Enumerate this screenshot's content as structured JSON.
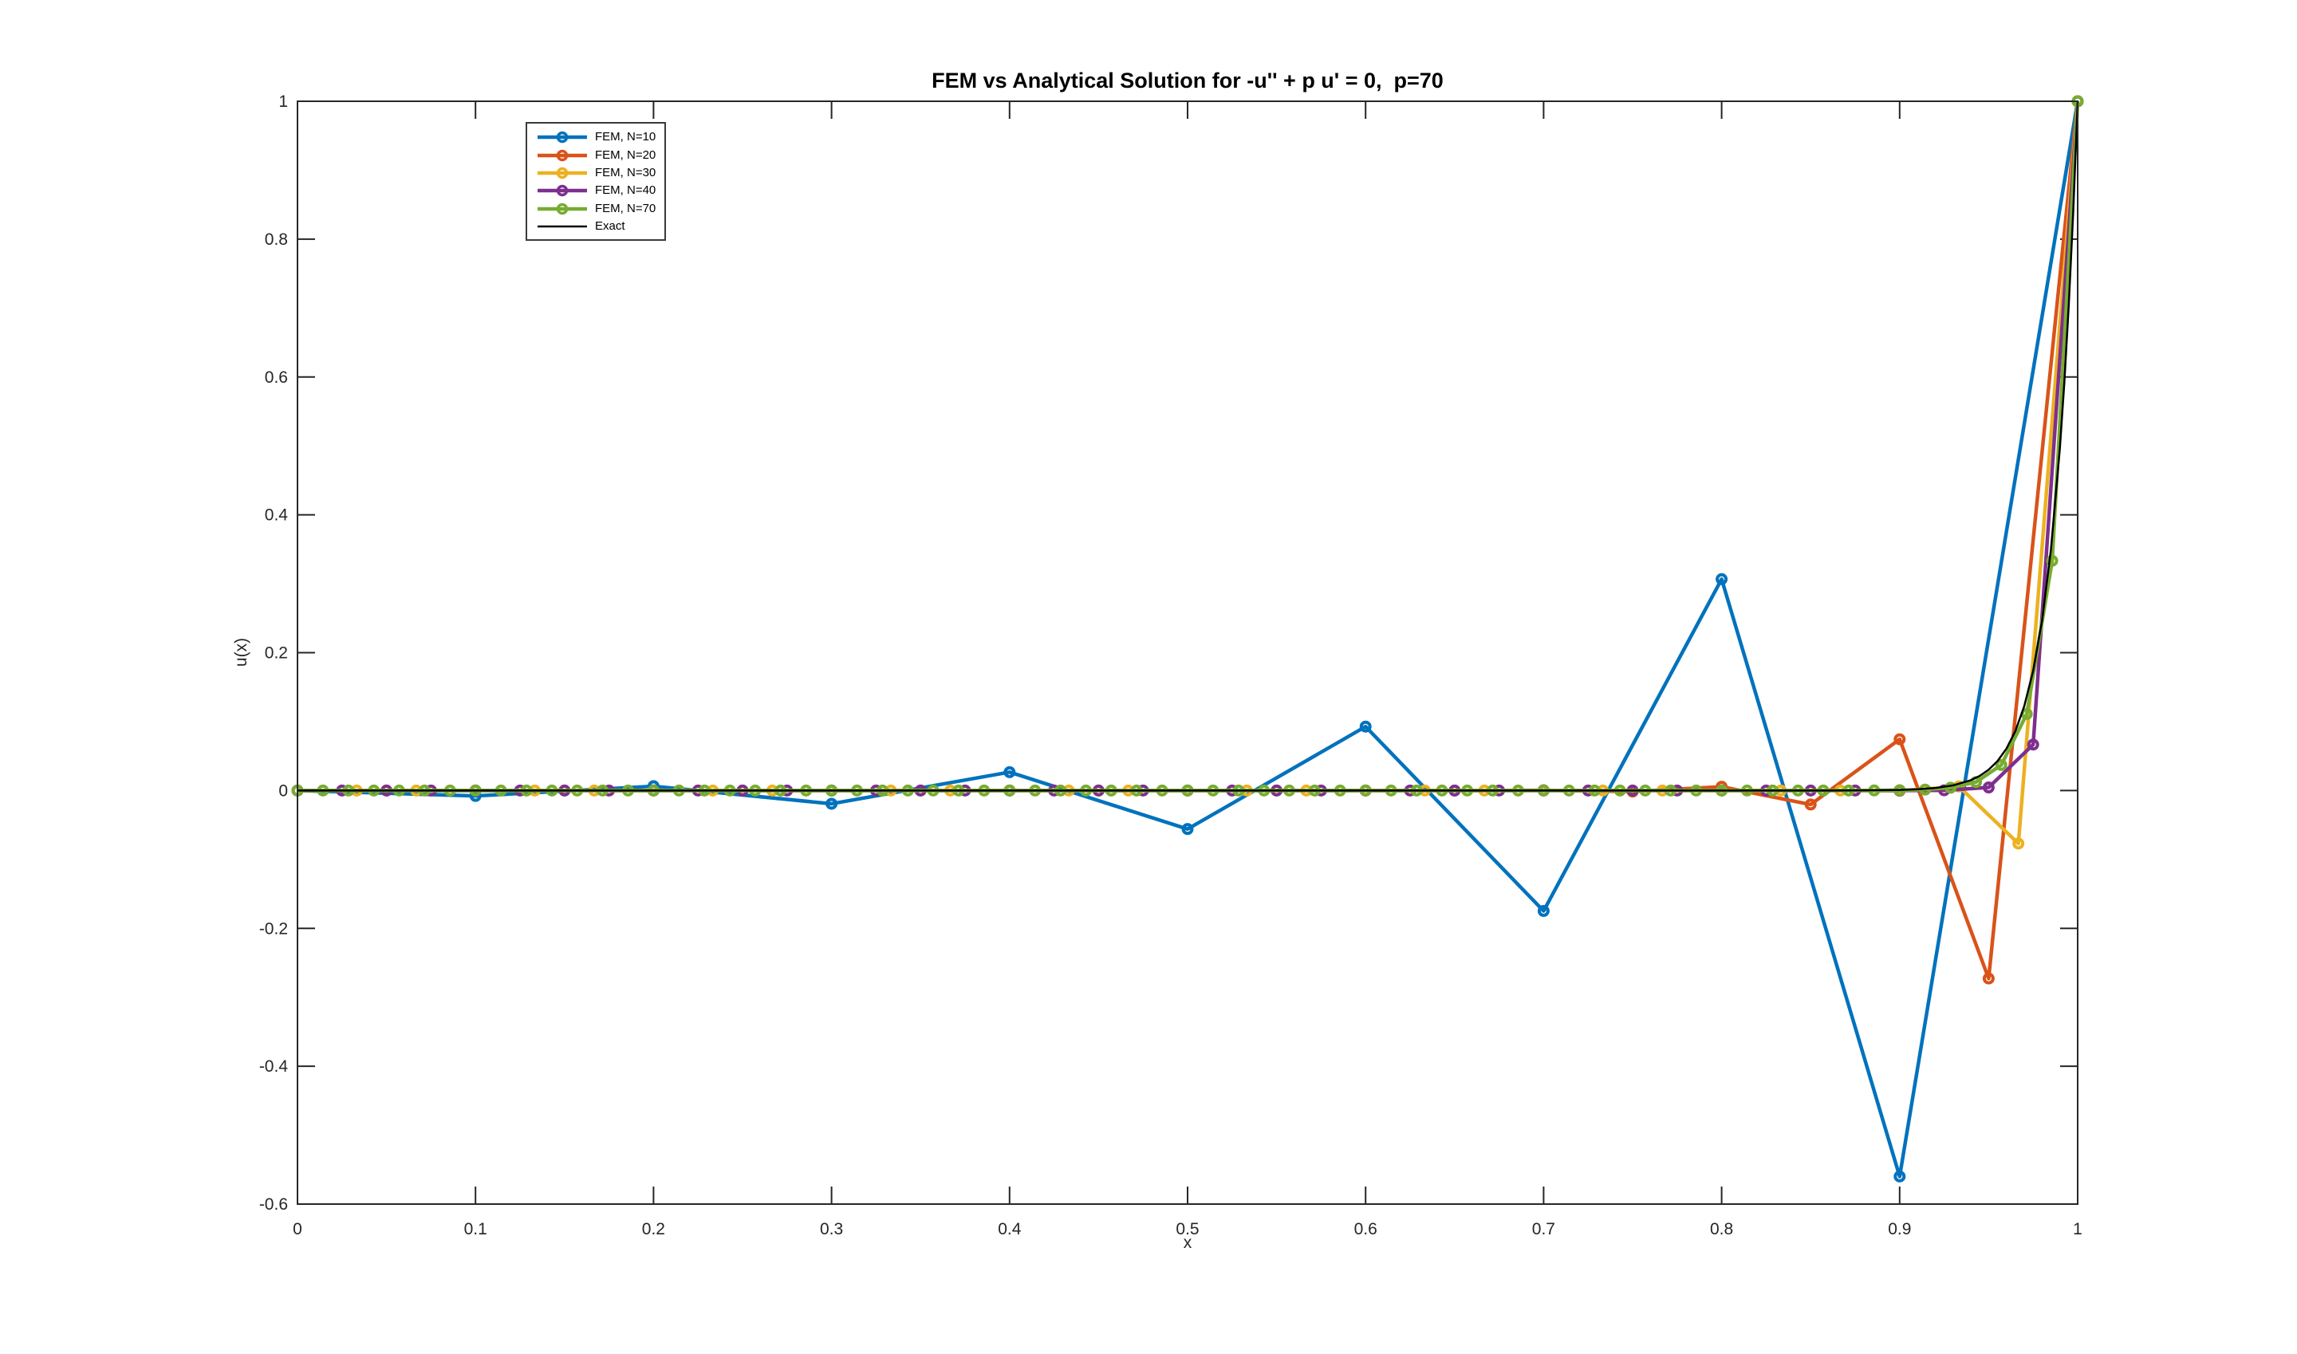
{
  "figure": {
    "background": "#ffffff",
    "axis_color": "#262626"
  },
  "chart_data": {
    "type": "line",
    "title": "FEM vs Analytical Solution for -u'' + p u' = 0,  p=70",
    "xlabel": "x",
    "ylabel": "u(x)",
    "xlim": [
      0,
      1
    ],
    "ylim": [
      -0.6,
      1
    ],
    "xticks": [
      0,
      0.1,
      0.2,
      0.3,
      0.4,
      0.5,
      0.6,
      0.7,
      0.8,
      0.9,
      1
    ],
    "xtick_labels": [
      "0",
      "0.1",
      "0.2",
      "0.3",
      "0.4",
      "0.5",
      "0.6",
      "0.7",
      "0.8",
      "0.9",
      "1"
    ],
    "yticks": [
      -0.6,
      -0.4,
      -0.2,
      0,
      0.2,
      0.4,
      0.6,
      0.8,
      1
    ],
    "ytick_labels": [
      "-0.6",
      "-0.4",
      "-0.2",
      "0",
      "0.2",
      "0.4",
      "0.6",
      "0.8",
      "1"
    ],
    "grid": false,
    "legend_position": "inside-top-left",
    "series": [
      {
        "name": "FEM, N=10",
        "color": "#0072BD",
        "marker": "o",
        "line_width": 4.5,
        "x": [
          0,
          0.1,
          0.2,
          0.3,
          0.4,
          0.5,
          0.6,
          0.7,
          0.8,
          0.9,
          1
        ],
        "y": [
          0,
          -0.007864,
          0.006291,
          -0.019189,
          0.026675,
          -0.05588,
          0.092719,
          -0.174758,
          0.3067,
          -0.559925,
          1
        ]
      },
      {
        "name": "FEM, N=20",
        "color": "#D95319",
        "marker": "o",
        "line_width": 4.5,
        "x": [
          0,
          0.05,
          0.1,
          0.15,
          0.2,
          0.25,
          0.3,
          0.35,
          0.4,
          0.45,
          0.5,
          0.55,
          0.6,
          0.65,
          0.7,
          0.75,
          0.8,
          0.85,
          0.9,
          0.95,
          1
        ],
        "y": [
          0,
          0,
          0,
          0,
          0,
          0,
          0,
          0,
          0,
          0,
          2e-06,
          -8e-06,
          3.1e-05,
          -0.000112,
          0.000412,
          -0.001509,
          0.005533,
          -0.020286,
          0.074383,
          -0.272727,
          1
        ]
      },
      {
        "name": "FEM, N=30",
        "color": "#EDB120",
        "marker": "o",
        "line_width": 4.5,
        "x": [
          0,
          0.0333,
          0.0667,
          0.1,
          0.1333,
          0.1667,
          0.2,
          0.2333,
          0.2667,
          0.3,
          0.3333,
          0.3667,
          0.4,
          0.4333,
          0.4667,
          0.5,
          0.5333,
          0.5667,
          0.6,
          0.6333,
          0.6667,
          0.7,
          0.7333,
          0.7667,
          0.8,
          0.8333,
          0.8667,
          0.9,
          0.9333,
          0.9667,
          1
        ],
        "y": [
          0,
          0,
          0,
          0,
          0,
          0,
          0,
          0,
          0,
          0,
          0,
          0,
          0,
          0,
          0,
          0,
          0,
          0,
          0,
          0,
          0,
          0,
          0,
          0,
          0,
          -3e-06,
          3.5e-05,
          -0.000455,
          0.005917,
          -0.076923,
          1
        ]
      },
      {
        "name": "FEM, N=40",
        "color": "#7E2F8E",
        "marker": "o",
        "line_width": 4.5,
        "x": [
          0,
          0.025,
          0.05,
          0.075,
          0.1,
          0.125,
          0.15,
          0.175,
          0.2,
          0.225,
          0.25,
          0.275,
          0.3,
          0.325,
          0.35,
          0.375,
          0.4,
          0.425,
          0.45,
          0.475,
          0.5,
          0.525,
          0.55,
          0.575,
          0.6,
          0.625,
          0.65,
          0.675,
          0.7,
          0.725,
          0.75,
          0.775,
          0.8,
          0.825,
          0.85,
          0.875,
          0.9,
          0.925,
          0.95,
          0.975,
          1
        ],
        "y": [
          0,
          0,
          0,
          0,
          0,
          0,
          0,
          0,
          0,
          0,
          0,
          0,
          0,
          0,
          0,
          0,
          0,
          0,
          0,
          0,
          0,
          0,
          0,
          0,
          0,
          0,
          0,
          0,
          0,
          0,
          0,
          0,
          0,
          0,
          0,
          1e-06,
          2e-05,
          0.000296,
          0.004444,
          0.066667,
          1
        ]
      },
      {
        "name": "FEM, N=70",
        "color": "#77AC30",
        "marker": "o",
        "line_width": 4.5,
        "x": [
          0,
          0.0143,
          0.0286,
          0.0429,
          0.0571,
          0.0714,
          0.0857,
          0.1,
          0.1143,
          0.1286,
          0.1429,
          0.1571,
          0.1714,
          0.1857,
          0.2,
          0.2143,
          0.2286,
          0.2429,
          0.2571,
          0.2714,
          0.2857,
          0.3,
          0.3143,
          0.3286,
          0.3429,
          0.3571,
          0.3714,
          0.3857,
          0.4,
          0.4143,
          0.4286,
          0.4429,
          0.4571,
          0.4714,
          0.4857,
          0.5,
          0.5143,
          0.5286,
          0.5429,
          0.5571,
          0.5714,
          0.5857,
          0.6,
          0.6143,
          0.6286,
          0.6429,
          0.6571,
          0.6714,
          0.6857,
          0.7,
          0.7143,
          0.7286,
          0.7429,
          0.7571,
          0.7714,
          0.7857,
          0.8,
          0.8143,
          0.8286,
          0.8429,
          0.8571,
          0.8714,
          0.8857,
          0.9,
          0.9143,
          0.9286,
          0.9429,
          0.9571,
          0.9714,
          0.9857,
          1
        ],
        "y": [
          0,
          0,
          0,
          0,
          0,
          0,
          0,
          0,
          0,
          0,
          0,
          0,
          0,
          0,
          0,
          0,
          0,
          0,
          0,
          0,
          0,
          0,
          0,
          0,
          0,
          0,
          0,
          0,
          0,
          0,
          0,
          0,
          0,
          0,
          0,
          0,
          0,
          0,
          0,
          0,
          0,
          0,
          0,
          0,
          0,
          0,
          0,
          0,
          0,
          0,
          0,
          0,
          0,
          0,
          0,
          0,
          0,
          0,
          0,
          0,
          1.7e-05,
          5.1e-05,
          0.000152,
          0.000457,
          0.001372,
          0.004115,
          0.012346,
          0.037037,
          0.111111,
          0.333333,
          1
        ]
      },
      {
        "name": "Exact",
        "color": "#000000",
        "marker": "none",
        "line_width": 2.5,
        "x": [
          0,
          0.1,
          0.2,
          0.3,
          0.4,
          0.5,
          0.6,
          0.7,
          0.8,
          0.84,
          0.86,
          0.88,
          0.9,
          0.91,
          0.92,
          0.93,
          0.94,
          0.945,
          0.95,
          0.955,
          0.96,
          0.965,
          0.97,
          0.975,
          0.98,
          0.985,
          0.99,
          0.9925,
          0.995,
          0.9975,
          1
        ],
        "y": [
          0,
          0,
          0,
          0,
          0,
          0,
          0,
          0,
          1e-06,
          1.4e-05,
          5.5e-05,
          0.000225,
          0.000912,
          0.001836,
          0.003698,
          0.007447,
          0.014996,
          0.02128,
          0.030197,
          0.042852,
          0.06081,
          0.086294,
          0.122456,
          0.173774,
          0.246597,
          0.349938,
          0.496585,
          0.591555,
          0.704688,
          0.839457,
          1
        ]
      }
    ]
  }
}
